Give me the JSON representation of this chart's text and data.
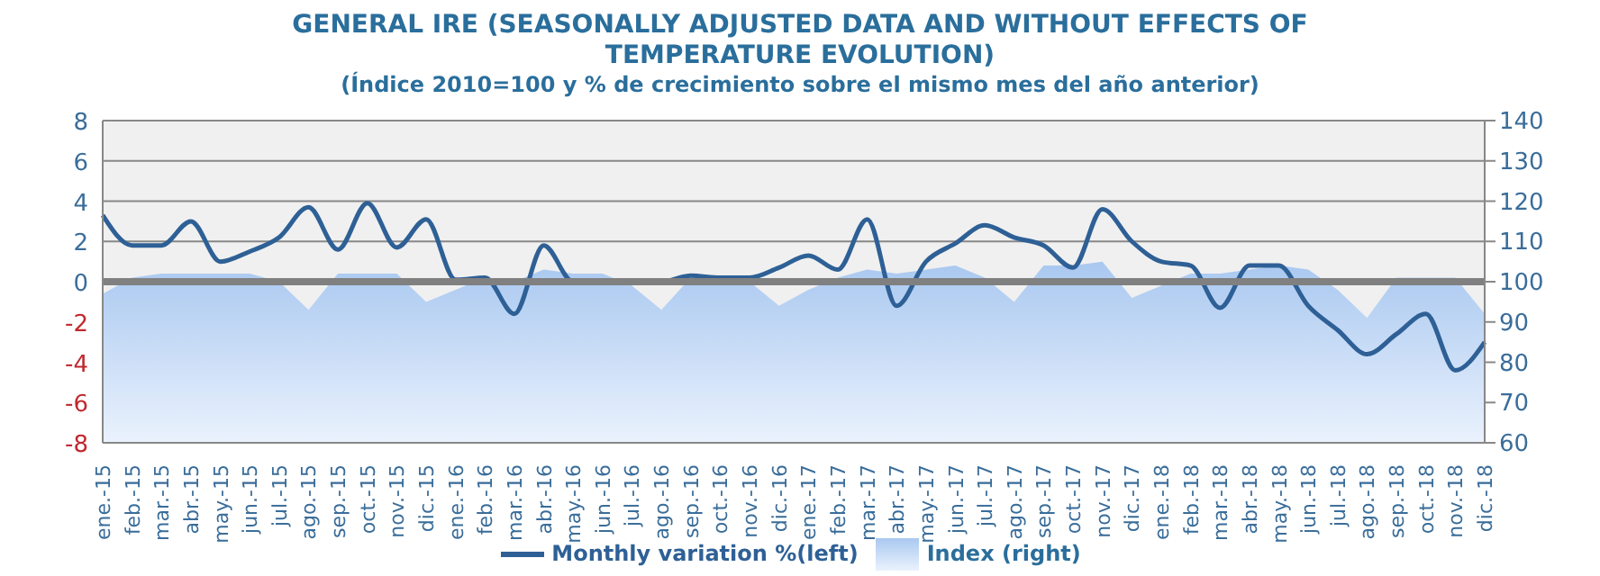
{
  "chart_data": {
    "type": "line",
    "title": "GENERAL IRE (SEASONALLY ADJUSTED DATA AND WITHOUT EFFECTS OF TEMPERATURE EVOLUTION)",
    "subtitle": "(Índice 2010=100 y % de crecimiento sobre el mismo mes del año anterior)",
    "categories": [
      "ene.-15",
      "feb.-15",
      "mar.-15",
      "abr.-15",
      "may.-15",
      "jun.-15",
      "jul.-15",
      "ago.-15",
      "sep.-15",
      "oct.-15",
      "nov.-15",
      "dic.-15",
      "ene.-16",
      "feb.-16",
      "mar.-16",
      "abr.-16",
      "may.-16",
      "jun.-16",
      "jul.-16",
      "ago.-16",
      "sep.-16",
      "oct.-16",
      "nov.-16",
      "dic.-16",
      "ene.-17",
      "feb.-17",
      "mar.-17",
      "abr.-17",
      "may.-17",
      "jun.-17",
      "jul.-17",
      "ago.-17",
      "sep.-17",
      "oct.-17",
      "nov.-17",
      "dic.-17",
      "ene.-18",
      "feb.-18",
      "mar.-18",
      "abr.-18",
      "may.-18",
      "jun.-18",
      "jul.-18",
      "ago.-18",
      "sep.-18",
      "oct.-18",
      "nov.-18",
      "dic.-18"
    ],
    "series": [
      {
        "name": "Index (right)",
        "type": "area",
        "axis": "y2",
        "color": "#a9c8f0",
        "values": [
          97,
          101,
          102,
          102,
          102,
          102,
          100,
          93,
          102,
          102,
          102,
          95,
          98,
          101,
          100,
          103,
          102,
          102,
          99,
          93,
          101,
          101,
          100,
          94,
          98,
          101,
          103,
          102,
          103,
          104,
          101,
          95,
          104,
          104,
          105,
          96,
          99,
          102,
          102,
          103,
          104,
          103,
          98,
          91,
          101,
          101,
          101,
          92
        ]
      },
      {
        "name": "Monthly variation %(left)",
        "color": "#2e6096",
        "values": [
          3.3,
          1.8,
          1.8,
          3.0,
          1.0,
          1.5,
          2.2,
          3.7,
          1.6,
          3.9,
          1.7,
          3.1,
          0.1,
          0.2,
          -1.6,
          1.8,
          0.0,
          0.0,
          0.0,
          0.0,
          0.3,
          0.2,
          0.2,
          0.7,
          1.3,
          0.6,
          3.1,
          -1.2,
          1.0,
          1.9,
          2.8,
          2.2,
          1.8,
          0.7,
          3.6,
          2.0,
          1.0,
          0.8,
          -1.3,
          0.8,
          0.8,
          -1.2,
          -2.4,
          -3.6,
          -2.6,
          -1.6,
          -4.4,
          -3.0
        ]
      }
    ],
    "ylim": [
      -8,
      8
    ],
    "yticks": [
      -8,
      -6,
      -4,
      -2,
      0,
      2,
      4,
      6,
      8
    ],
    "y2lim": [
      60,
      140
    ],
    "y2ticks": [
      60,
      70,
      80,
      90,
      100,
      110,
      120,
      130,
      140
    ],
    "ref_lines": [
      {
        "axis": "y",
        "value": 0,
        "color": "#808080"
      }
    ],
    "grid": "y",
    "legend": "bottom",
    "marker": "none",
    "line_style": "solid"
  }
}
